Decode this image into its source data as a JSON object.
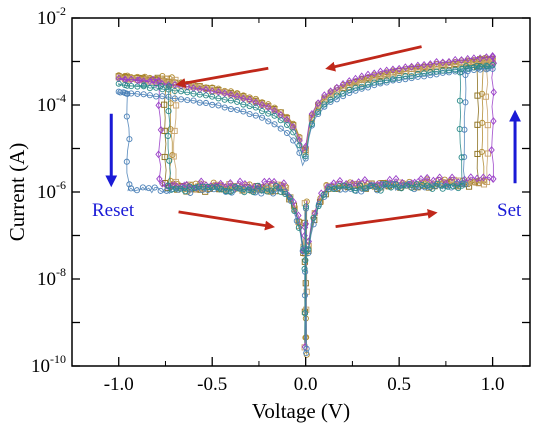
{
  "chart_data": {
    "type": "scatter",
    "title": "",
    "xlabel": "Voltage (V)",
    "ylabel": "Current (A)",
    "xlim": [
      -1.25,
      1.2
    ],
    "ylim_log10": [
      -10,
      -2
    ],
    "yscale": "log",
    "grid": false,
    "x_ticks": [
      {
        "value": -1.0,
        "label": "-1.0"
      },
      {
        "value": -0.5,
        "label": "-0.5"
      },
      {
        "value": 0.0,
        "label": "0.0"
      },
      {
        "value": 0.5,
        "label": "0.5"
      },
      {
        "value": 1.0,
        "label": "1.0"
      }
    ],
    "y_ticks": [
      {
        "exp": -2,
        "base": "10",
        "sup": "-2"
      },
      {
        "exp": -4,
        "base": "10",
        "sup": "-4"
      },
      {
        "exp": -6,
        "base": "10",
        "sup": "-6"
      },
      {
        "exp": -8,
        "base": "10",
        "sup": "-8"
      },
      {
        "exp": -10,
        "base": "10",
        "sup": "-10"
      }
    ],
    "series": [
      {
        "color": "#8a6d1a",
        "marker": "square",
        "set_v": 0.92,
        "reset_v": -0.75,
        "hrs_0": 1.2e-06,
        "hrs_1": 1.6e-06,
        "lrs_max": 0.0011,
        "lrs_min": 0.00045
      },
      {
        "color": "#b08a2e",
        "marker": "circle",
        "set_v": 0.95,
        "reset_v": -0.72,
        "hrs_0": 1.4e-06,
        "hrs_1": 1.8e-06,
        "lrs_max": 0.0012,
        "lrs_min": 0.00048
      },
      {
        "color": "#c8a26a",
        "marker": "square",
        "set_v": 0.97,
        "reset_v": -0.7,
        "hrs_0": 1.3e-06,
        "hrs_1": 1.7e-06,
        "lrs_max": 0.001,
        "lrs_min": 0.00042
      },
      {
        "color": "#9a40c8",
        "marker": "diamond",
        "set_v": 1.0,
        "reset_v": -0.78,
        "hrs_0": 1.5e-06,
        "hrs_1": 2e-06,
        "lrs_max": 0.0013,
        "lrs_min": 0.0004
      },
      {
        "color": "#4d82b8",
        "marker": "circle",
        "set_v": 0.85,
        "reset_v": -0.95,
        "hrs_0": 1.1e-06,
        "hrs_1": 1.5e-06,
        "lrs_max": 0.0007,
        "lrs_min": 0.0002
      },
      {
        "color": "#2a8a8a",
        "marker": "circle",
        "set_v": 0.83,
        "reset_v": -0.73,
        "hrs_0": 1.2e-06,
        "hrs_1": 1.4e-06,
        "lrs_max": 0.0008,
        "lrs_min": 0.0003
      }
    ],
    "annotations": [
      {
        "text": "Reset",
        "color": "#1a1ad6"
      },
      {
        "text": "Set",
        "color": "#1a1ad6"
      }
    ],
    "direction_arrows": {
      "color_sweep": "#c0281a",
      "color_switch": "#1a1ad6"
    }
  }
}
